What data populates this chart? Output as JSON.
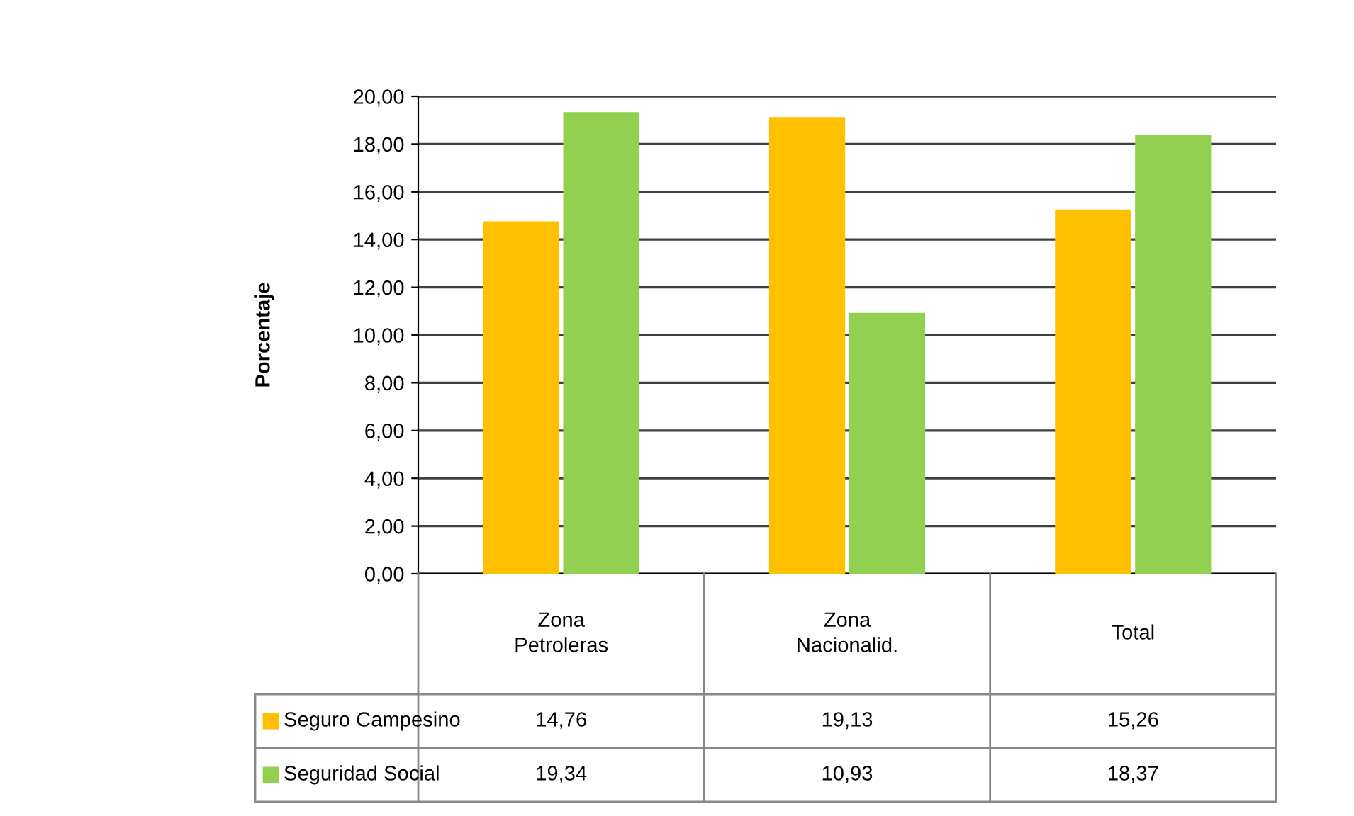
{
  "chart_data": {
    "type": "bar",
    "ylabel": "Porcentaje",
    "categories": [
      "Zona\nPetroleras",
      "Zona\nNacionalid.",
      "Total"
    ],
    "series": [
      {
        "name": "Seguro Campesino",
        "color": "#ffc000",
        "values": [
          14.76,
          19.13,
          15.26
        ],
        "value_labels": [
          "14,76",
          "19,13",
          "15,26"
        ]
      },
      {
        "name": "Seguridad Social",
        "color": "#92d050",
        "values": [
          19.34,
          10.93,
          18.37
        ],
        "value_labels": [
          "19,34",
          "10,93",
          "18,37"
        ]
      }
    ],
    "ylim": [
      0,
      20
    ],
    "yticks": [
      {
        "value": 0,
        "label": "0,00"
      },
      {
        "value": 2,
        "label": "2,00"
      },
      {
        "value": 4,
        "label": "4,00"
      },
      {
        "value": 6,
        "label": "6,00"
      },
      {
        "value": 8,
        "label": "8,00"
      },
      {
        "value": 10,
        "label": "10,00"
      },
      {
        "value": 12,
        "label": "12,00"
      },
      {
        "value": 14,
        "label": "14,00"
      },
      {
        "value": 16,
        "label": "16,00"
      },
      {
        "value": 18,
        "label": "18,00"
      },
      {
        "value": 20,
        "label": "20,00"
      }
    ],
    "grid": "y",
    "legend": "bottom"
  }
}
